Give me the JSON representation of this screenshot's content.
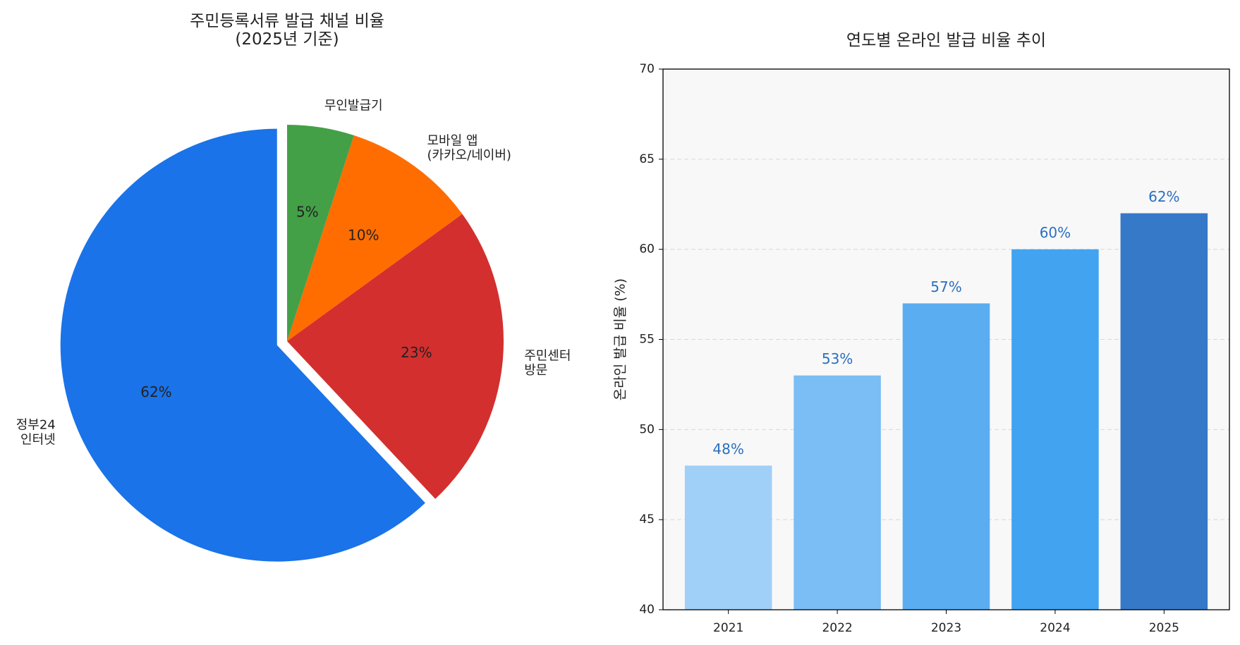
{
  "chart_data": [
    {
      "type": "pie",
      "title": "주민등록서류 발급 채널 비율\n(2025년 기준)",
      "categories": [
        "정부24\n인터넷",
        "주민센터\n방문",
        "모바일 앱\n(카카오/네이버)",
        "무인발급기"
      ],
      "values": [
        62,
        23,
        10,
        5
      ],
      "value_labels": [
        "62%",
        "23%",
        "10%",
        "5%"
      ],
      "colors": [
        "#1a73e8",
        "#d32f2f",
        "#ff6d00",
        "#43a047"
      ],
      "explode": [
        0.05,
        0,
        0,
        0
      ],
      "start_angle": 90
    },
    {
      "type": "bar",
      "title": "연도별 온라인 발급 비율 추이",
      "y_label": "온라인 발급 비율 (%)",
      "categories": [
        "2021",
        "2022",
        "2023",
        "2024",
        "2025"
      ],
      "values": [
        48,
        53,
        57,
        60,
        62
      ],
      "value_labels": [
        "48%",
        "53%",
        "57%",
        "60%",
        "62%"
      ],
      "colors": [
        "#a0cff7",
        "#7bbdf5",
        "#5aadf1",
        "#42a3f0",
        "#3579c8"
      ],
      "ylim": [
        40,
        70
      ],
      "yticks": [
        40,
        45,
        50,
        55,
        60,
        65,
        70
      ],
      "grid": true
    }
  ]
}
